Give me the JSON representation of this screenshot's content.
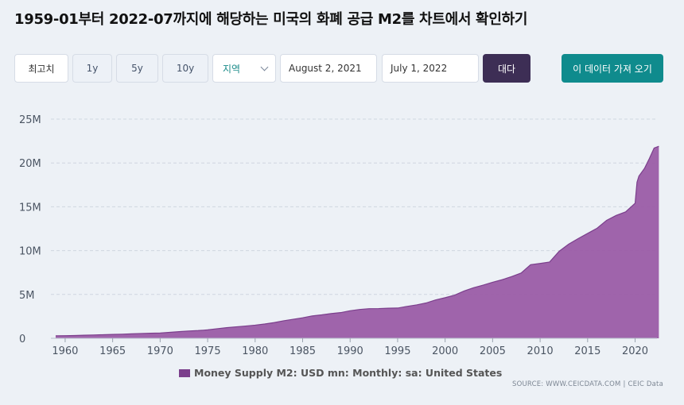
{
  "page": {
    "title": "1959-01부터 2022-07까지에 해당하는 미국의 화폐 공급 M2를 차트에서 확인하기"
  },
  "toolbar": {
    "range_buttons": [
      "최고치",
      "1y",
      "5y",
      "10y"
    ],
    "region_label": "지역",
    "start_date": "August 2, 2021",
    "end_date": "July 1, 2022",
    "go_label": "대다",
    "export_label": "이 데이터 가져 오기"
  },
  "colors": {
    "area": "#9b5ca7",
    "area_line": "#7b3f8c",
    "go": "#3d2e55",
    "export": "#0f8b8d",
    "region_text": "#1c8c8a"
  },
  "chart_data": {
    "type": "area",
    "title": "",
    "series": [
      {
        "name": "Money Supply M2: USD mn: Monthly: sa: United States",
        "x": [
          1959,
          1960,
          1961,
          1962,
          1963,
          1964,
          1965,
          1966,
          1967,
          1968,
          1969,
          1970,
          1971,
          1972,
          1973,
          1974,
          1975,
          1976,
          1977,
          1978,
          1979,
          1980,
          1981,
          1982,
          1983,
          1984,
          1985,
          1986,
          1987,
          1988,
          1989,
          1990,
          1991,
          1992,
          1993,
          1994,
          1995,
          1996,
          1997,
          1998,
          1999,
          2000,
          2001,
          2002,
          2003,
          2004,
          2005,
          2006,
          2007,
          2008,
          2009,
          2010,
          2011,
          2012,
          2013,
          2014,
          2015,
          2016,
          2017,
          2018,
          2019,
          2020,
          2020.2,
          2020.4,
          2021,
          2021.5,
          2022,
          2022.5
        ],
        "values": [
          290000,
          300000,
          320000,
          350000,
          380000,
          410000,
          440000,
          470000,
          510000,
          550000,
          580000,
          600000,
          680000,
          760000,
          830000,
          880000,
          960000,
          1090000,
          1210000,
          1310000,
          1400000,
          1500000,
          1630000,
          1790000,
          2000000,
          2170000,
          2340000,
          2550000,
          2670000,
          2820000,
          2930000,
          3140000,
          3290000,
          3380000,
          3390000,
          3430000,
          3450000,
          3640000,
          3810000,
          4030000,
          4380000,
          4630000,
          4920000,
          5390000,
          5770000,
          6060000,
          6390000,
          6680000,
          7040000,
          7440000,
          8400000,
          8540000,
          8700000,
          9920000,
          10730000,
          11370000,
          11960000,
          12560000,
          13450000,
          14010000,
          14420000,
          15400000,
          17800000,
          18500000,
          19400000,
          20500000,
          21700000,
          21900000
        ]
      }
    ],
    "xlabel": "",
    "ylabel": "",
    "xlim": [
      1958.5,
      2022.3
    ],
    "ylim": [
      0,
      25000000
    ],
    "x_ticks": [
      1960,
      1965,
      1970,
      1975,
      1980,
      1985,
      1990,
      1995,
      2000,
      2005,
      2010,
      2015,
      2020
    ],
    "x_tick_labels": [
      "1960",
      "1965",
      "1970",
      "1975",
      "1980",
      "1985",
      "1990",
      "1995",
      "2000",
      "2005",
      "2010",
      "2015",
      "2020"
    ],
    "y_ticks": [
      0,
      5000000,
      10000000,
      15000000,
      20000000,
      25000000
    ],
    "y_tick_labels": [
      "0",
      "5M",
      "10M",
      "15M",
      "20M",
      "25M"
    ],
    "grid": true,
    "legend": "bottom-center"
  },
  "source": "SOURCE: WWW.CEICDATA.COM | CEIC Data"
}
